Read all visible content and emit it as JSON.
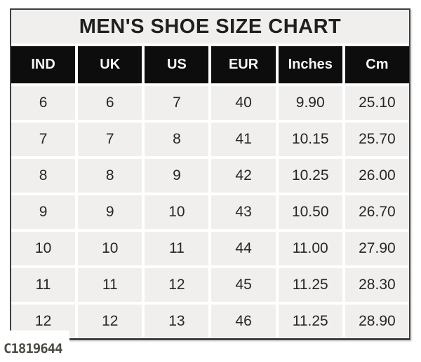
{
  "chart_data": {
    "type": "table",
    "title": "MEN'S SHOE SIZE CHART",
    "columns": [
      "IND",
      "UK",
      "US",
      "EUR",
      "Inches",
      "Cm"
    ],
    "rows": [
      [
        "6",
        "6",
        "7",
        "40",
        "9.90",
        "25.10"
      ],
      [
        "7",
        "7",
        "8",
        "41",
        "10.15",
        "25.70"
      ],
      [
        "8",
        "8",
        "9",
        "42",
        "10.25",
        "26.00"
      ],
      [
        "9",
        "9",
        "10",
        "43",
        "10.50",
        "26.70"
      ],
      [
        "10",
        "10",
        "11",
        "44",
        "11.00",
        "27.90"
      ],
      [
        "11",
        "11",
        "12",
        "45",
        "11.25",
        "28.30"
      ],
      [
        "12",
        "12",
        "13",
        "46",
        "11.25",
        "28.90"
      ]
    ],
    "layout": {
      "legend": "none",
      "grid": "white gutters between gray cells"
    }
  },
  "watermark": "C1819644",
  "colors": {
    "page_bg": "#ffffff",
    "title_bg": "#f0efed",
    "title_text": "#1f1f1f",
    "header_bg": "#0d0d0d",
    "header_text": "#f7f7f7",
    "cell_bg": "#f0efed",
    "cell_text": "#262626",
    "table_border": "#3f3f3f",
    "watermark_text": "#4d4b44"
  }
}
